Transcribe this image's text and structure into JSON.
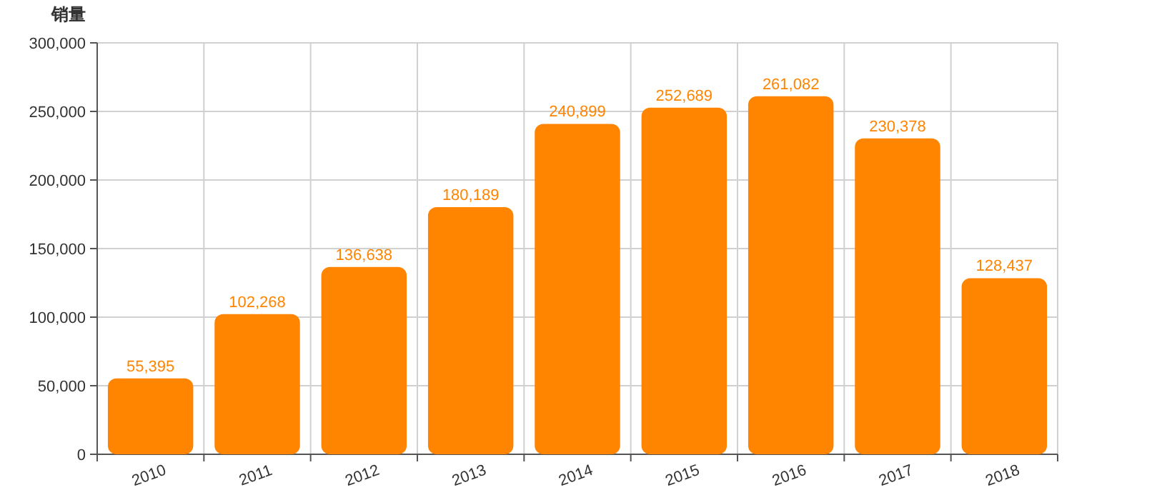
{
  "chart_data": {
    "type": "bar",
    "ylabel": "销量",
    "categories": [
      "2010",
      "2011",
      "2012",
      "2013",
      "2014",
      "2015",
      "2016",
      "2017",
      "2018"
    ],
    "values": [
      55395,
      102268,
      136638,
      180189,
      240899,
      252689,
      261082,
      230378,
      128437
    ],
    "value_labels": [
      "55,395",
      "102,268",
      "136,638",
      "180,189",
      "240,899",
      "252,689",
      "261,082",
      "230,378",
      "128,437"
    ],
    "color": "#ff8400",
    "ylim": [
      0,
      300000
    ],
    "yticks": [
      {
        "value": 0,
        "label": "0"
      },
      {
        "value": 50000,
        "label": "50,000"
      },
      {
        "value": 100000,
        "label": "100,000"
      },
      {
        "value": 150000,
        "label": "150,000"
      },
      {
        "value": 200000,
        "label": "200,000"
      },
      {
        "value": 250000,
        "label": "250,000"
      },
      {
        "value": 300000,
        "label": "300,000"
      }
    ],
    "grid": true
  }
}
